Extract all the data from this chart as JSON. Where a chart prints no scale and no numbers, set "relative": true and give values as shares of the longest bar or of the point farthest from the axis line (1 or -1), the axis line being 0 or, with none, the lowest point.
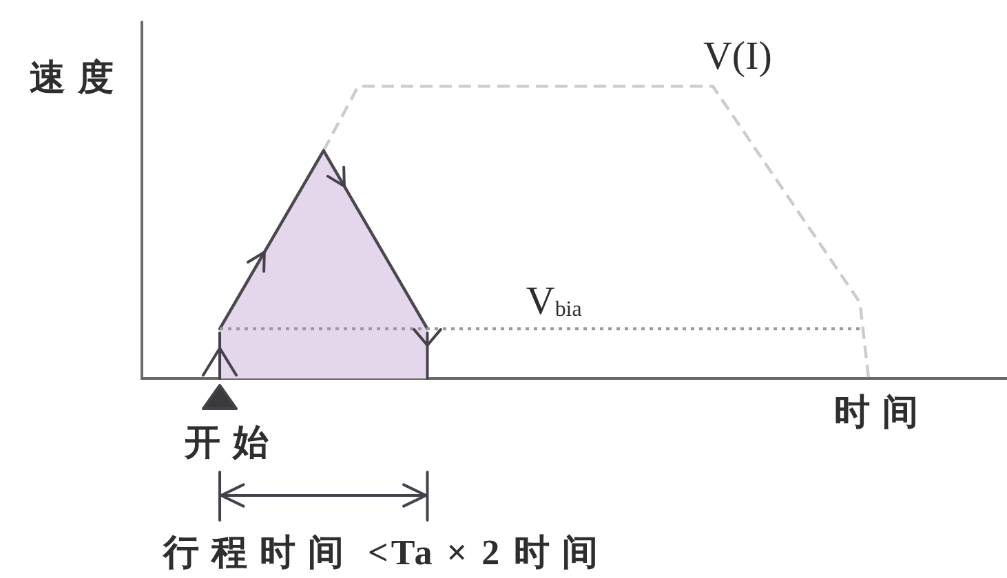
{
  "chart_data": {
    "type": "line",
    "relative": true,
    "xlabel": "时间",
    "ylabel": "速度",
    "tick_labels": false,
    "categories": [
      null,
      null,
      null,
      null,
      null,
      null,
      null,
      null,
      null,
      null,
      null,
      null,
      null,
      null,
      null,
      null,
      null,
      null,
      null,
      null,
      null,
      null,
      null,
      null,
      null,
      null,
      null,
      null,
      null,
      null,
      null,
      null,
      null,
      null,
      null,
      null,
      null,
      null,
      null,
      null,
      null,
      null,
      null,
      null,
      null,
      null,
      null,
      null,
      null,
      null,
      null,
      null,
      null,
      null,
      null,
      null,
      null,
      null,
      null,
      null,
      null,
      null,
      null,
      null,
      null,
      null,
      null,
      null,
      null,
      null,
      null,
      null,
      null,
      null,
      null,
      null,
      null,
      null,
      null,
      null,
      null,
      null,
      null,
      null,
      null,
      null,
      null,
      null,
      null,
      null,
      null,
      null,
      null,
      null,
      null,
      null,
      null,
      null,
      null,
      null,
      null
    ],
    "series": [
      {
        "type": "area",
        "color": "#e4d7eb",
        "values": [
          null,
          null,
          null,
          null,
          null,
          null,
          null,
          null,
          null,
          0.17,
          null,
          null,
          null,
          null,
          null,
          null,
          null,
          null,
          null,
          null,
          null,
          0.78,
          null,
          null,
          null,
          null,
          null,
          null,
          null,
          null,
          null,
          null,
          null,
          0.17,
          null,
          null,
          null,
          null,
          null,
          null,
          null,
          null,
          null,
          null,
          null,
          null,
          null,
          null,
          null,
          null,
          null,
          null,
          null,
          null,
          null,
          null,
          null,
          null,
          null,
          null,
          null,
          null,
          null,
          null,
          null,
          null,
          null,
          null,
          null,
          null,
          null,
          null,
          null,
          null,
          null,
          null,
          null,
          null,
          null,
          null,
          null,
          null,
          null,
          null,
          null,
          null,
          null,
          null,
          null,
          null,
          null,
          null,
          null,
          null,
          null,
          null,
          null,
          null,
          null,
          null,
          null
        ]
      },
      {
        "name": "V(I)",
        "color": "#cccccc",
        "line_style": "dashed",
        "values": [
          null,
          null,
          null,
          null,
          null,
          null,
          null,
          null,
          null,
          null,
          null,
          null,
          null,
          null,
          null,
          null,
          null,
          null,
          null,
          null,
          null,
          0.78,
          null,
          null,
          null,
          1,
          null,
          null,
          null,
          null,
          null,
          null,
          null,
          null,
          null,
          null,
          null,
          null,
          null,
          null,
          null,
          null,
          null,
          null,
          null,
          null,
          null,
          null,
          null,
          null,
          null,
          null,
          null,
          null,
          null,
          null,
          null,
          null,
          null,
          null,
          null,
          null,
          null,
          null,
          null,
          null,
          1,
          null,
          null,
          null,
          null,
          null,
          null,
          null,
          null,
          null,
          null,
          null,
          null,
          null,
          null,
          null,
          null,
          0.26,
          0,
          null,
          null,
          null,
          null,
          null,
          null,
          null,
          null,
          null,
          null,
          null,
          null,
          null,
          null,
          null,
          null
        ]
      },
      {
        "name": "V$_{bia}$",
        "color": "#9a9a9a",
        "line_style": "dotted",
        "values": [
          null,
          null,
          null,
          null,
          null,
          null,
          null,
          null,
          null,
          0.17,
          null,
          null,
          null,
          null,
          null,
          null,
          null,
          null,
          null,
          null,
          null,
          null,
          null,
          null,
          null,
          null,
          null,
          null,
          null,
          null,
          null,
          null,
          null,
          null,
          null,
          null,
          null,
          null,
          null,
          null,
          null,
          null,
          null,
          null,
          null,
          null,
          null,
          null,
          null,
          null,
          null,
          null,
          null,
          null,
          null,
          null,
          null,
          null,
          null,
          null,
          null,
          null,
          null,
          null,
          null,
          null,
          null,
          null,
          null,
          null,
          null,
          null,
          null,
          null,
          null,
          null,
          null,
          null,
          null,
          null,
          null,
          null,
          null,
          0.17,
          null,
          null,
          null,
          null,
          null,
          null,
          null,
          null,
          null,
          null,
          null,
          null,
          null,
          null,
          null,
          null,
          null
        ]
      }
    ],
    "annotations": [
      "开始",
      "行程时间 <Ta × 2 时间"
    ]
  }
}
